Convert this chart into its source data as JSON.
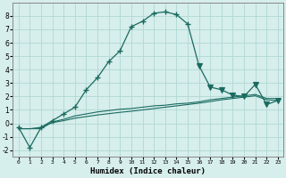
{
  "xlabel": "Humidex (Indice chaleur)",
  "xlim": [
    -0.5,
    23.5
  ],
  "ylim": [
    -2.5,
    9.0
  ],
  "yticks": [
    -2,
    -1,
    0,
    1,
    2,
    3,
    4,
    5,
    6,
    7,
    8
  ],
  "xticks": [
    0,
    1,
    2,
    3,
    4,
    5,
    6,
    7,
    8,
    9,
    10,
    11,
    12,
    13,
    14,
    15,
    16,
    17,
    18,
    19,
    20,
    21,
    22,
    23
  ],
  "bg_color": "#d6eeec",
  "grid_color": "#b0d8d4",
  "line_color": "#1a6b60",
  "line1_x": [
    0,
    1,
    2,
    3,
    4,
    5,
    6,
    7,
    8,
    9,
    10,
    11,
    12,
    13,
    14,
    15,
    16,
    17,
    18,
    19,
    20,
    21,
    22,
    23
  ],
  "line1_y": [
    -0.3,
    -1.8,
    -0.3,
    0.2,
    0.7,
    1.2,
    2.5,
    3.4,
    4.6,
    5.4,
    7.2,
    7.6,
    8.2,
    8.3,
    8.1,
    7.4,
    4.3,
    2.7,
    2.5,
    2.1,
    2.0,
    2.9,
    1.4,
    1.7
  ],
  "line2_x": [
    0,
    1,
    2,
    3,
    4,
    5,
    6,
    7,
    8,
    9,
    10,
    11,
    12,
    13,
    14,
    15,
    16,
    17,
    18,
    19,
    20,
    21,
    22,
    23
  ],
  "line2_y": [
    -0.4,
    -0.4,
    -0.4,
    0.1,
    0.3,
    0.55,
    0.7,
    0.85,
    0.95,
    1.05,
    1.1,
    1.2,
    1.3,
    1.35,
    1.45,
    1.5,
    1.6,
    1.75,
    1.85,
    1.95,
    2.05,
    2.15,
    1.85,
    1.85
  ],
  "line3_x": [
    0,
    1,
    2,
    3,
    4,
    5,
    6,
    7,
    8,
    9,
    10,
    11,
    12,
    13,
    14,
    15,
    16,
    17,
    18,
    19,
    20,
    21,
    22,
    23
  ],
  "line3_y": [
    -0.4,
    -0.4,
    -0.3,
    0.05,
    0.2,
    0.38,
    0.5,
    0.62,
    0.72,
    0.82,
    0.9,
    1.0,
    1.1,
    1.2,
    1.3,
    1.4,
    1.5,
    1.62,
    1.75,
    1.85,
    1.95,
    2.05,
    1.75,
    1.7
  ],
  "marker1_x": [
    0,
    1,
    2,
    3,
    4,
    5,
    6,
    7,
    8,
    9,
    10,
    11,
    12,
    13,
    14,
    15
  ],
  "marker1_y": [
    -0.3,
    -1.8,
    -0.3,
    0.2,
    0.7,
    1.2,
    2.5,
    3.4,
    4.6,
    5.4,
    7.2,
    7.6,
    8.2,
    8.3,
    8.1,
    7.4
  ],
  "marker2_x": [
    16,
    17,
    18,
    19,
    20,
    21,
    22,
    23
  ],
  "marker2_y": [
    4.3,
    2.7,
    2.5,
    2.1,
    2.0,
    2.9,
    1.4,
    1.7
  ]
}
